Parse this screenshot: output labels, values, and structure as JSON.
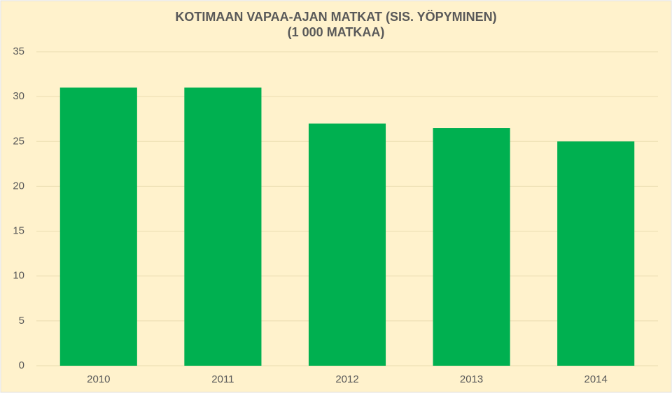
{
  "chart_data": {
    "type": "bar",
    "title": "KOTIMAAN VAPAA-AJAN MATKAT (SIS. YÖPYMINEN)",
    "subtitle": "(1 000 MATKAA)",
    "categories": [
      "2010",
      "2011",
      "2012",
      "2013",
      "2014"
    ],
    "values": [
      31,
      31,
      27,
      26.5,
      25
    ],
    "color": "#00b050",
    "ylim": [
      0,
      35
    ],
    "yticks": [
      0,
      5,
      10,
      15,
      20,
      25,
      30,
      35
    ],
    "grid": true
  }
}
